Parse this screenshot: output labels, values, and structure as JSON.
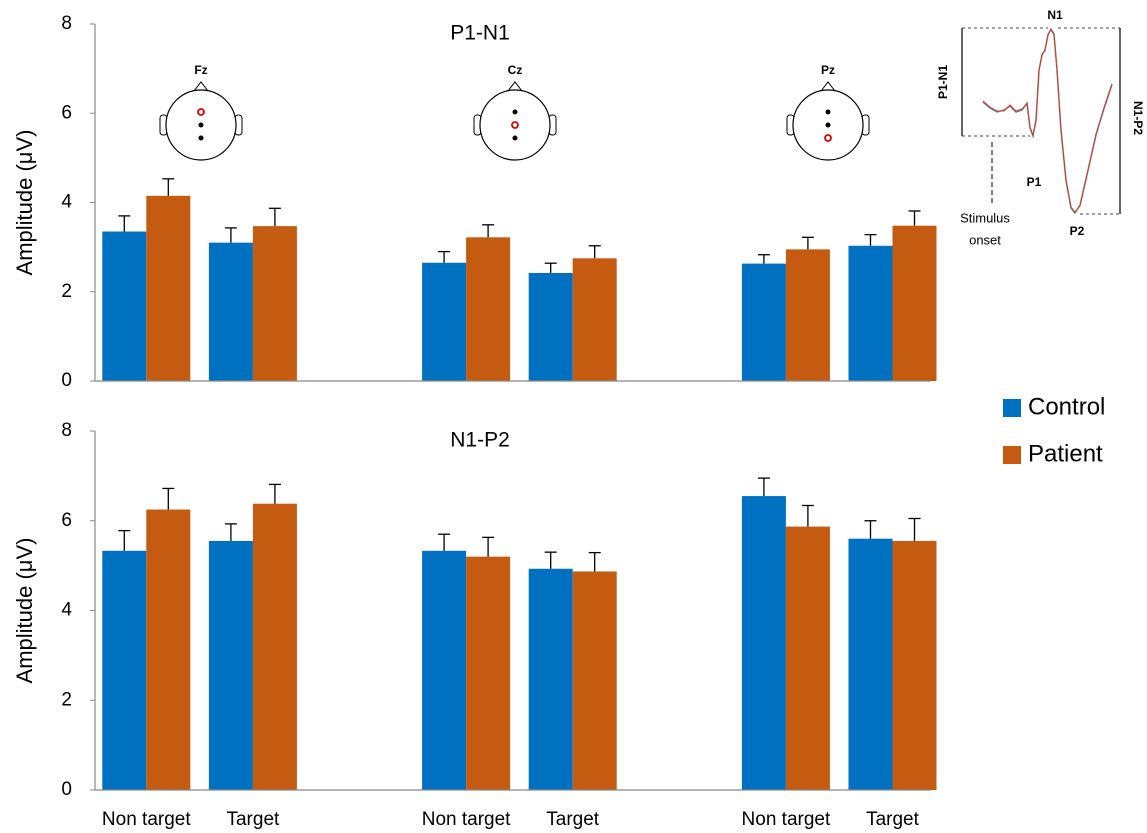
{
  "chart_data": [
    {
      "type": "bar",
      "title": "P1-N1",
      "y_label": "Amplitude (μV)",
      "ylim": [
        0,
        8
      ],
      "yticks": [
        0,
        2,
        4,
        6,
        8
      ],
      "series": [
        {
          "color": "#0070c0",
          "values": [
            3.35,
            3.1,
            null,
            2.65,
            2.42,
            null,
            2.63,
            3.03
          ],
          "errors": [
            0.35,
            0.33,
            null,
            0.25,
            0.22,
            null,
            0.2,
            0.25
          ]
        },
        {
          "color": "#c55a11",
          "values": [
            4.15,
            3.47,
            null,
            3.22,
            2.75,
            null,
            2.95,
            3.48
          ],
          "errors": [
            0.38,
            0.4,
            null,
            0.28,
            0.28,
            null,
            0.27,
            0.33
          ]
        }
      ],
      "electrodes": [
        "Fz",
        "Cz",
        "Pz"
      ]
    },
    {
      "type": "bar",
      "title": "N1-P2",
      "y_label": "Amplitude (μV)",
      "ylim": [
        0,
        8
      ],
      "yticks": [
        0,
        2,
        4,
        6,
        8
      ],
      "categories": [
        "Non target",
        "Target",
        null,
        "Non target",
        "Target",
        null,
        "Non target",
        "Target"
      ],
      "series": [
        {
          "name": "Control",
          "color": "#0070c0",
          "values": [
            5.33,
            5.55,
            null,
            5.33,
            4.93,
            null,
            6.55,
            5.6
          ],
          "errors": [
            0.45,
            0.38,
            null,
            0.37,
            0.37,
            null,
            0.4,
            0.4
          ]
        },
        {
          "name": "Patient",
          "color": "#c55a11",
          "values": [
            6.25,
            6.38,
            null,
            5.2,
            4.87,
            null,
            5.87,
            5.55
          ],
          "errors": [
            0.47,
            0.43,
            null,
            0.43,
            0.42,
            null,
            0.47,
            0.5
          ]
        }
      ]
    }
  ],
  "inset": {
    "peaks": [
      "N1",
      "P1",
      "P2"
    ],
    "measures": [
      "P1-N1",
      "N1-P2"
    ],
    "onset": [
      "Stimulus",
      "onset"
    ]
  }
}
